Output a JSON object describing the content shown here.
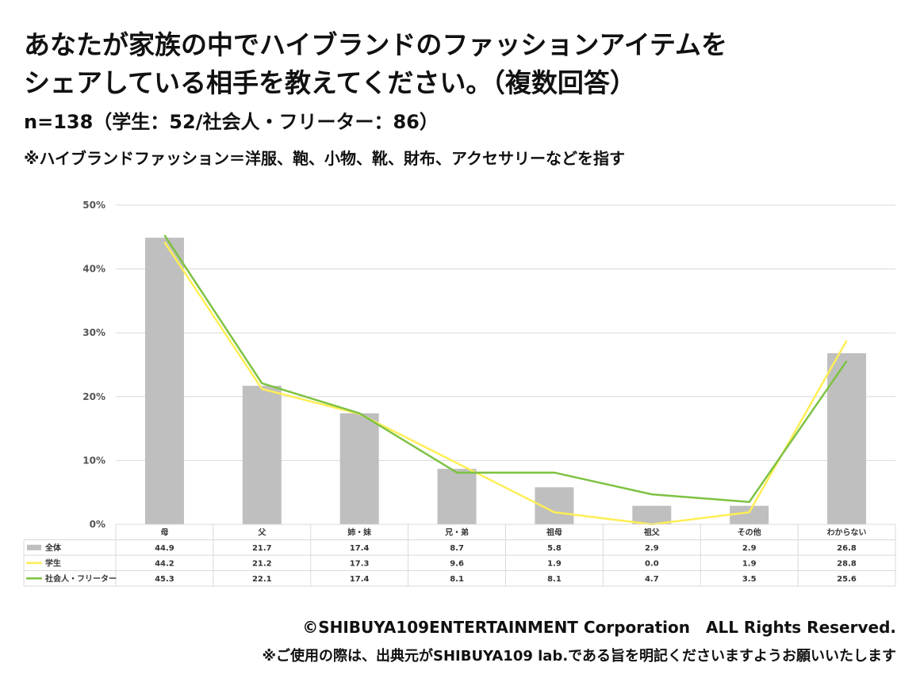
{
  "header": {
    "title_line1": "あなたが家族の中でハイブランドのファッションアイテムを",
    "title_line2": "シェアしている相手を教えてください。（複数回答）",
    "sample": "n=138（学生：52/社会人・フリーター：86）",
    "note": "※ハイブランドファッション＝洋服、鞄、小物、靴、財布、アクセサリーなどを指す"
  },
  "footer": {
    "copyright": "©SHIBUYA109ENTERTAINMENT Corporation　ALL Rights Reserved.",
    "usage": "※ご使用の際は、出典元がSHIBUYA109 lab.である旨を明記くださいますようお願いいたします"
  },
  "colors": {
    "bar": "#bfbfbf",
    "student": "#ffee55",
    "worker": "#7dc242",
    "grid": "#d9d9d9",
    "table_border": "#d9d9d9"
  },
  "chart_data": {
    "type": "bar",
    "categories": [
      "母",
      "父",
      "姉・妹",
      "兄・弟",
      "祖母",
      "祖父",
      "その他",
      "わからない"
    ],
    "ylim": [
      0,
      50
    ],
    "yticks": [
      "0%",
      "10%",
      "20%",
      "30%",
      "40%",
      "50%"
    ],
    "grid": true,
    "legend": "data-table",
    "series": [
      {
        "name": "全体",
        "type": "bar",
        "values": [
          44.9,
          21.7,
          17.4,
          8.7,
          5.8,
          2.9,
          2.9,
          26.8
        ]
      },
      {
        "name": "学生",
        "type": "line",
        "values": [
          44.2,
          21.2,
          17.3,
          9.6,
          1.9,
          0.0,
          1.9,
          28.8
        ]
      },
      {
        "name": "社会人・フリーター",
        "type": "line",
        "values": [
          45.3,
          22.1,
          17.4,
          8.1,
          8.1,
          4.7,
          3.5,
          25.6
        ]
      }
    ]
  }
}
